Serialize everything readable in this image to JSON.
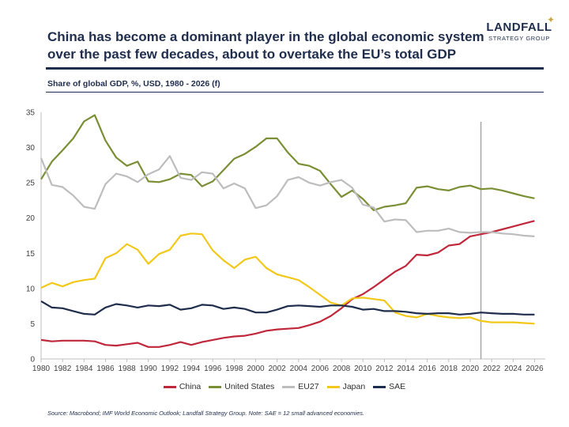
{
  "header": {
    "title": "China has become a dominant player in the global economic system\nover the past few decades, about to overtake the EU’s total GDP",
    "subtitle": "Share of global GDP, %, USD, 1980 - 2026 (f)",
    "logo_name": "LANDFALL",
    "logo_sub": "STRATEGY GROUP"
  },
  "footer": {
    "source": "Source: Macrobond; IMF World Economic Outlook; Landfall Strategy Group. Note: SAE = 12 small advanced economies."
  },
  "colors": {
    "China": "#c0273a",
    "United States": "#7a8f35",
    "EU27": "#bdbdbd",
    "Japan": "#f2c81a",
    "SAE": "#1f2d4d",
    "forecast_line": "#a6a6a6"
  },
  "chart_data": {
    "type": "line",
    "title": "Share of global GDP, %, USD, 1980 - 2026 (f)",
    "x": [
      1980,
      1981,
      1982,
      1983,
      1984,
      1985,
      1986,
      1987,
      1988,
      1989,
      1990,
      1991,
      1992,
      1993,
      1994,
      1995,
      1996,
      1997,
      1998,
      1999,
      2000,
      2001,
      2002,
      2003,
      2004,
      2005,
      2006,
      2007,
      2008,
      2009,
      2010,
      2011,
      2012,
      2013,
      2014,
      2015,
      2016,
      2017,
      2018,
      2019,
      2020,
      2021,
      2022,
      2023,
      2024,
      2025,
      2026
    ],
    "xlim": [
      1980,
      2027
    ],
    "ylim": [
      0,
      35
    ],
    "x_ticks": [
      1980,
      1982,
      1984,
      1986,
      1988,
      1990,
      1992,
      1994,
      1996,
      1998,
      2000,
      2002,
      2004,
      2006,
      2008,
      2010,
      2012,
      2014,
      2016,
      2018,
      2020,
      2022,
      2024,
      2026
    ],
    "y_ticks": [
      0,
      5,
      10,
      15,
      20,
      25,
      30,
      35
    ],
    "forecast_start": 2021,
    "grid": false,
    "legend_position": "bottom",
    "series": [
      {
        "name": "China",
        "values": [
          2.7,
          2.5,
          2.6,
          2.6,
          2.6,
          2.5,
          2.0,
          1.9,
          2.1,
          2.3,
          1.7,
          1.7,
          2.0,
          2.4,
          2.0,
          2.4,
          2.7,
          3.0,
          3.2,
          3.3,
          3.6,
          4.0,
          4.2,
          4.3,
          4.4,
          4.8,
          5.3,
          6.1,
          7.2,
          8.5,
          9.2,
          10.2,
          11.3,
          12.4,
          13.2,
          14.8,
          14.7,
          15.1,
          16.1,
          16.3,
          17.4,
          17.7,
          18.0,
          18.4,
          18.8,
          19.2,
          19.6
        ]
      },
      {
        "name": "United States",
        "values": [
          25.5,
          28.0,
          29.6,
          31.3,
          33.7,
          34.6,
          31.0,
          28.6,
          27.4,
          28.0,
          25.2,
          25.1,
          25.5,
          26.3,
          26.1,
          24.5,
          25.2,
          26.8,
          28.4,
          29.1,
          30.1,
          31.3,
          31.3,
          29.3,
          27.7,
          27.4,
          26.7,
          24.8,
          23.0,
          23.9,
          22.7,
          21.1,
          21.6,
          21.8,
          22.1,
          24.3,
          24.5,
          24.1,
          23.9,
          24.4,
          24.6,
          24.1,
          24.2,
          23.9,
          23.5,
          23.1,
          22.8
        ]
      },
      {
        "name": "EU27",
        "values": [
          28.5,
          24.7,
          24.4,
          23.2,
          21.6,
          21.3,
          24.8,
          26.3,
          25.9,
          25.1,
          26.2,
          26.9,
          28.8,
          25.7,
          25.4,
          26.5,
          26.3,
          24.2,
          24.9,
          24.2,
          21.4,
          21.8,
          23.1,
          25.4,
          25.8,
          25.0,
          24.6,
          25.1,
          25.4,
          24.3,
          21.9,
          21.5,
          19.5,
          19.8,
          19.7,
          18.0,
          18.2,
          18.2,
          18.5,
          18.0,
          17.9,
          18.0,
          18.0,
          17.8,
          17.7,
          17.5,
          17.4
        ]
      },
      {
        "name": "Japan",
        "values": [
          10.1,
          10.8,
          10.3,
          10.9,
          11.2,
          11.4,
          14.3,
          15.0,
          16.3,
          15.5,
          13.5,
          14.9,
          15.5,
          17.5,
          17.8,
          17.7,
          15.4,
          14.0,
          12.9,
          14.1,
          14.5,
          12.9,
          12.0,
          11.6,
          11.2,
          10.2,
          9.1,
          8.0,
          7.6,
          8.6,
          8.7,
          8.5,
          8.3,
          6.6,
          6.1,
          5.9,
          6.4,
          6.1,
          5.9,
          5.8,
          5.9,
          5.4,
          5.2,
          5.2,
          5.2,
          5.1,
          5.0
        ]
      },
      {
        "name": "SAE",
        "values": [
          8.2,
          7.3,
          7.2,
          6.8,
          6.4,
          6.3,
          7.3,
          7.8,
          7.6,
          7.3,
          7.6,
          7.5,
          7.7,
          7.0,
          7.2,
          7.7,
          7.6,
          7.1,
          7.3,
          7.1,
          6.6,
          6.6,
          7.0,
          7.5,
          7.6,
          7.5,
          7.4,
          7.6,
          7.6,
          7.4,
          7.0,
          7.1,
          6.8,
          6.8,
          6.7,
          6.5,
          6.4,
          6.5,
          6.5,
          6.3,
          6.4,
          6.6,
          6.5,
          6.4,
          6.4,
          6.3,
          6.3
        ]
      }
    ]
  }
}
